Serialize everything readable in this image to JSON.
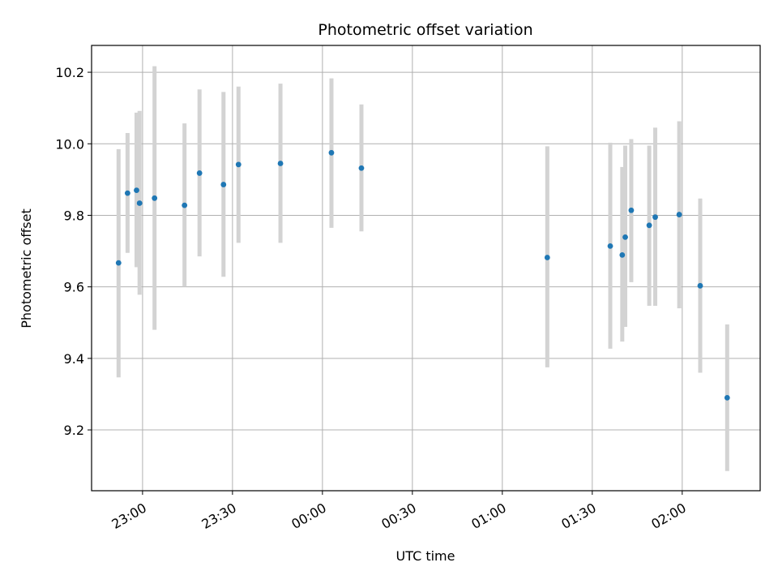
{
  "chart_data": {
    "type": "scatter",
    "title": "Photometric offset variation",
    "xlabel": "UTC time",
    "ylabel": "Photometric offset",
    "xlim": [
      "22:43",
      "02:26"
    ],
    "ylim": [
      9.03,
      10.275
    ],
    "x_ticks": [
      "23:00",
      "23:30",
      "00:00",
      "00:30",
      "01:00",
      "01:30",
      "02:00"
    ],
    "y_ticks": [
      9.2,
      9.4,
      9.6,
      9.8,
      10.0,
      10.2
    ],
    "grid": true,
    "colors": {
      "point": "#1f77b4",
      "errorbar": "#d3d3d3",
      "grid": "#b0b0b0"
    },
    "series": [
      {
        "points": [
          {
            "time": "22:52",
            "value": 9.667,
            "low": 9.347,
            "high": 9.985
          },
          {
            "time": "22:55",
            "value": 9.862,
            "low": 9.695,
            "high": 10.03
          },
          {
            "time": "22:58",
            "value": 9.87,
            "low": 9.655,
            "high": 10.087
          },
          {
            "time": "22:59",
            "value": 9.834,
            "low": 9.578,
            "high": 10.092
          },
          {
            "time": "23:04",
            "value": 9.848,
            "low": 9.48,
            "high": 10.217
          },
          {
            "time": "23:14",
            "value": 9.828,
            "low": 9.6,
            "high": 10.057
          },
          {
            "time": "23:19",
            "value": 9.918,
            "low": 9.685,
            "high": 10.152
          },
          {
            "time": "23:27",
            "value": 9.886,
            "low": 9.628,
            "high": 10.145
          },
          {
            "time": "23:32",
            "value": 9.942,
            "low": 9.723,
            "high": 10.16
          },
          {
            "time": "23:46",
            "value": 9.945,
            "low": 9.723,
            "high": 10.168
          },
          {
            "time": "00:03",
            "value": 9.975,
            "low": 9.765,
            "high": 10.183
          },
          {
            "time": "00:13",
            "value": 9.932,
            "low": 9.755,
            "high": 10.11
          },
          {
            "time": "01:15",
            "value": 9.682,
            "low": 9.375,
            "high": 9.993
          },
          {
            "time": "01:36",
            "value": 9.714,
            "low": 9.427,
            "high": 10.003
          },
          {
            "time": "01:40",
            "value": 9.689,
            "low": 9.447,
            "high": 9.935
          },
          {
            "time": "01:41",
            "value": 9.739,
            "low": 9.488,
            "high": 9.995
          },
          {
            "time": "01:43",
            "value": 9.814,
            "low": 9.613,
            "high": 10.013
          },
          {
            "time": "01:49",
            "value": 9.772,
            "low": 9.547,
            "high": 9.995
          },
          {
            "time": "01:51",
            "value": 9.795,
            "low": 9.547,
            "high": 10.045
          },
          {
            "time": "01:59",
            "value": 9.802,
            "low": 9.54,
            "high": 10.063
          },
          {
            "time": "02:06",
            "value": 9.603,
            "low": 9.36,
            "high": 9.847
          },
          {
            "time": "02:15",
            "value": 9.29,
            "low": 9.085,
            "high": 9.495
          }
        ]
      }
    ]
  }
}
